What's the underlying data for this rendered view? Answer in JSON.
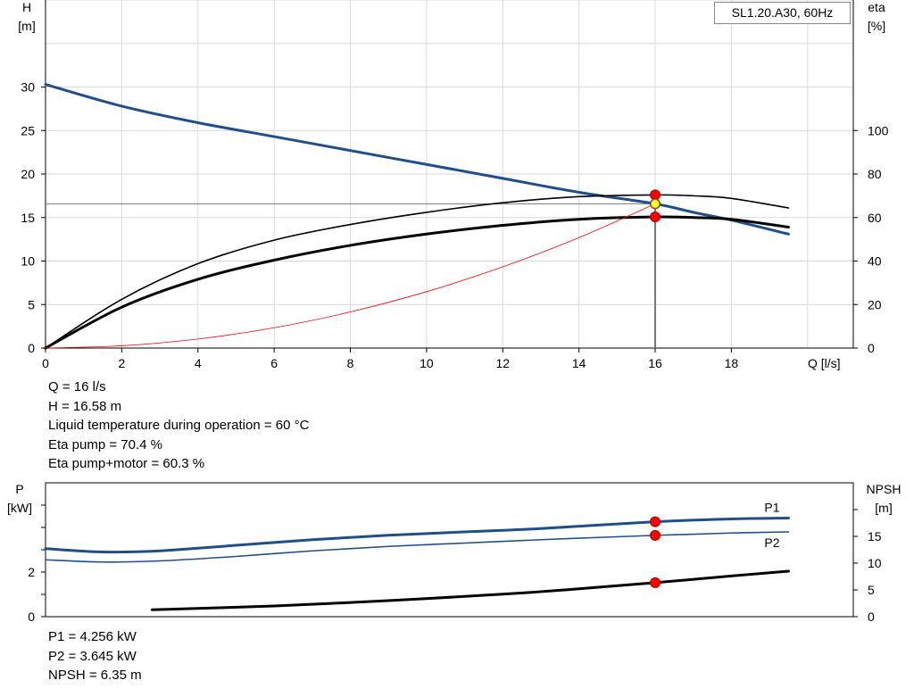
{
  "chart_data": [
    {
      "type": "line",
      "legend": "SL1.20.A30, 60Hz",
      "xlabel": "Q [l/s]",
      "ylabel_left": [
        "H",
        "[m]"
      ],
      "ylabel_right": [
        "eta",
        "[%]"
      ],
      "xlim": [
        0,
        21.2
      ],
      "ylim_left": [
        0,
        40
      ],
      "ylim_right": [
        0,
        160
      ],
      "x_ticks": [
        0,
        2,
        4,
        6,
        8,
        10,
        12,
        14,
        16,
        18
      ],
      "y_left_ticks": [
        0,
        5,
        10,
        15,
        20,
        25,
        30
      ],
      "y_right_ticks": [
        0,
        20,
        40,
        60,
        80,
        100
      ],
      "grid": true,
      "operating_point": {
        "x": 16,
        "y": 16.58
      },
      "series": [
        {
          "role": "head",
          "axis": "left",
          "color": "#1f4e8c",
          "width": 3,
          "x": [
            0,
            2,
            4,
            6,
            8,
            10,
            12,
            14,
            16,
            17,
            18,
            19.5
          ],
          "y": [
            30.3,
            27.8,
            25.9,
            24.3,
            22.7,
            21.1,
            19.5,
            17.9,
            16.58,
            15.6,
            14.7,
            13.1
          ]
        },
        {
          "role": "eta_pump",
          "axis": "right",
          "color": "#000000",
          "width": 1.6,
          "x": [
            0,
            2,
            4,
            6,
            8,
            10,
            12,
            14,
            16,
            17,
            18,
            19.5
          ],
          "y": [
            0,
            22.4,
            38.8,
            49.6,
            56.8,
            62.4,
            66.8,
            69.6,
            70.4,
            70.0,
            68.8,
            64.4
          ]
        },
        {
          "role": "eta_pump_motor",
          "axis": "right",
          "color": "#000000",
          "width": 3,
          "x": [
            0,
            2,
            4,
            6,
            8,
            10,
            12,
            14,
            16,
            17,
            18,
            19.5
          ],
          "y": [
            0,
            18.8,
            31.6,
            40.4,
            47.2,
            52.4,
            56.4,
            59.2,
            60.3,
            60.0,
            59.2,
            55.6
          ]
        },
        {
          "role": "system_curve",
          "axis": "left",
          "color": "#ff0000",
          "width": 0.8,
          "x": [
            0,
            2,
            4,
            6,
            8,
            10,
            12,
            14,
            16
          ],
          "y": [
            0,
            0.26,
            1.04,
            2.33,
            4.15,
            6.48,
            9.33,
            12.69,
            16.58
          ]
        }
      ],
      "markers": [
        {
          "axis": "right",
          "x": 16,
          "y": 70.4
        },
        {
          "axis": "left",
          "x": 16,
          "y": 16.58
        },
        {
          "axis": "right",
          "x": 16,
          "y": 60.3
        }
      ]
    },
    {
      "type": "line",
      "ylabel_left": [
        "P",
        "[kW]"
      ],
      "ylabel_right": [
        "NPSH",
        "[m]"
      ],
      "xlim": [
        0,
        21.2
      ],
      "ylim_left": [
        0,
        6
      ],
      "ylim_right": [
        0,
        25
      ],
      "y_left_ticks": [
        0,
        2
      ],
      "y_right_ticks": [
        0,
        5,
        10,
        15
      ],
      "grid": false,
      "series": [
        {
          "name": "P1",
          "axis": "left",
          "color": "#1f4e8c",
          "width": 3,
          "x": [
            0,
            1.5,
            3,
            5,
            7,
            9,
            11,
            13,
            16,
            18,
            19.5
          ],
          "y": [
            3.05,
            2.9,
            2.95,
            3.2,
            3.45,
            3.65,
            3.8,
            3.95,
            4.256,
            4.38,
            4.42
          ]
        },
        {
          "name": "P2",
          "axis": "left",
          "color": "#1f4e8c",
          "width": 1.6,
          "x": [
            0,
            1.5,
            3,
            5,
            7,
            9,
            11,
            13,
            16,
            18,
            19.5
          ],
          "y": [
            2.55,
            2.45,
            2.5,
            2.7,
            2.95,
            3.15,
            3.3,
            3.45,
            3.645,
            3.75,
            3.8
          ]
        },
        {
          "role": "npsh",
          "axis": "right",
          "color": "#000000",
          "width": 3,
          "x": [
            2.8,
            6,
            9,
            12,
            14,
            16,
            18,
            19.5
          ],
          "y": [
            1.3,
            2.0,
            3.0,
            4.2,
            5.2,
            6.35,
            7.6,
            8.5
          ]
        }
      ],
      "markers": [
        {
          "axis": "left",
          "x": 16,
          "y": 4.256
        },
        {
          "axis": "left",
          "x": 16,
          "y": 3.645
        },
        {
          "axis": "right",
          "x": 16,
          "y": 6.35
        }
      ]
    }
  ],
  "info_top": [
    "Q = 16 l/s",
    "H = 16.58 m",
    "Liquid temperature during operation = 60 °C",
    "Eta pump = 70.4 %",
    "Eta pump+motor = 60.3 %"
  ],
  "info_bottom": [
    "P1 = 4.256 kW",
    "P2 = 3.645 kW",
    "NPSH = 6.35 m"
  ],
  "colors": {
    "grid": "#d9d9d9",
    "marker": "#ff0000",
    "marker_stroke": "#b00000",
    "operating_point": "#ffff33"
  }
}
